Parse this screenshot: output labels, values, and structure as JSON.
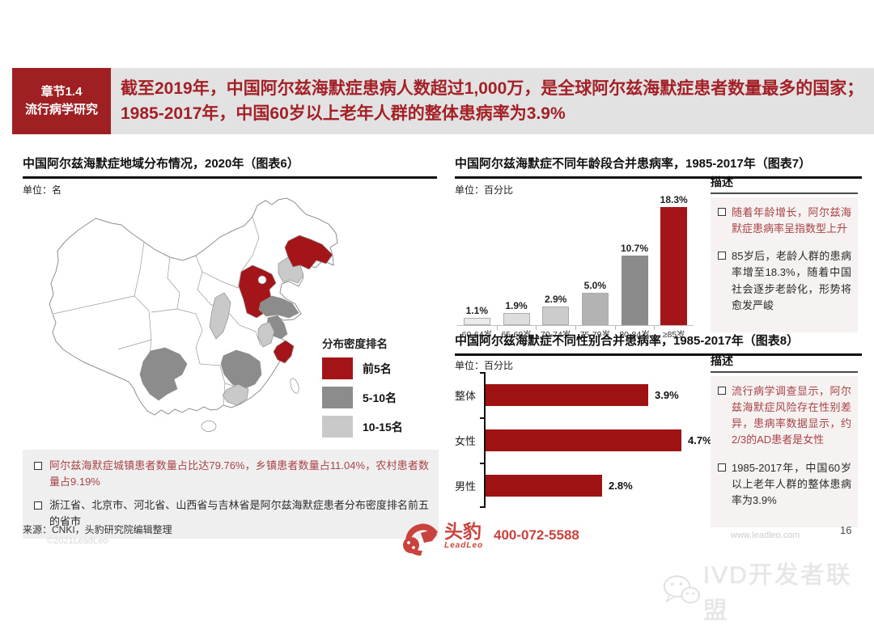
{
  "header": {
    "chapter_line1": "章节1.4",
    "chapter_line2": "流行病学研究",
    "banner": "截至2019年，中国阿尔兹海默症患病人数超过1,000万，是全球阿尔兹海默症患者数量最多的国家；1985-2017年，中国60岁以上老年人群的整体患病率为3.9%",
    "accent_color": "#A32126",
    "chapter_bg": "#9E2023",
    "banner_bg": "#E2E2E2"
  },
  "map_section": {
    "title": "中国阿尔兹海默症地域分布情况，2020年（图表6）",
    "unit": "单位：名",
    "legend": {
      "title": "分布密度排名",
      "items": [
        {
          "label": "前5名",
          "color": "#A31518"
        },
        {
          "label": "5-10名",
          "color": "#8C8C8C"
        },
        {
          "label": "10-15名",
          "color": "#C9C9C9"
        }
      ]
    },
    "notes": [
      {
        "text": "阿尔兹海默症城镇患者数量占比达79.76%，乡镇患者数量占11.04%，农村患者数量占9.19%",
        "red": true
      },
      {
        "text": "浙江省、北京市、河北省、山西省与吉林省是阿尔兹海默症患者分布密度排名前五的省市",
        "red": false
      }
    ],
    "source": "来源：CNKI，头豹研究院编辑整理"
  },
  "chart_data": [
    {
      "type": "bar",
      "orientation": "vertical",
      "title": "中国阿尔兹海默症不同年龄段合并患病率，1985-2017年（图表7）",
      "unit": "单位：百分比",
      "categories": [
        "60-64岁",
        "65-69岁",
        "70-74岁",
        "75-79岁",
        "80-84岁",
        "≥85岁"
      ],
      "values": [
        1.1,
        1.9,
        2.9,
        5.0,
        10.7,
        18.3
      ],
      "value_labels": [
        "1.1%",
        "1.9%",
        "2.9%",
        "5.0%",
        "10.7%",
        "18.3%"
      ],
      "bar_colors": [
        "#EBEBEB",
        "#DEDEDE",
        "#CCCCCC",
        "#B3B3B3",
        "#8B8B8B",
        "#A31518"
      ],
      "ylim": [
        0,
        20
      ],
      "grid": false,
      "legend_position": "none"
    },
    {
      "type": "bar",
      "orientation": "horizontal",
      "title": "中国阿尔兹海默症不同性别合并患病率，1985-2017年（图表8）",
      "unit": "单位：百分比",
      "categories": [
        "整体",
        "女性",
        "男性"
      ],
      "values": [
        3.9,
        4.7,
        2.8
      ],
      "value_labels": [
        "3.9%",
        "4.7%",
        "2.8%"
      ],
      "bar_color": "#9E1214",
      "xlim": [
        0,
        5
      ],
      "grid": false,
      "legend_position": "none"
    }
  ],
  "descriptions": [
    {
      "title": "描述",
      "bullets": [
        {
          "text": "随着年龄增长，阿尔兹海默症患病率呈指数型上升",
          "red": true
        },
        {
          "text": "85岁后，老龄人群的患病率增至18.3%，随着中国社会逐步老龄化，形势将愈发严峻",
          "red": false
        }
      ]
    },
    {
      "title": "描述",
      "bullets": [
        {
          "text": "流行病学调查显示，阿尔兹海默症风险存在性别差异，患病率数据显示，约2/3的AD患者是女性",
          "red": true
        },
        {
          "text": "1985-2017年，中国60岁以上老年人群的整体患病率为3.9%",
          "red": false
        }
      ]
    }
  ],
  "footer": {
    "brand": "头豹",
    "brand_sub": "LeadLeo",
    "phone": "400-072-5588",
    "brand_color": "#C9423D"
  },
  "page": {
    "number": "16",
    "copyright_watermark": "©2021LeadLeo",
    "site_watermark": "www.leadleo.com",
    "bottom_watermark": "IVD开发者联盟"
  }
}
